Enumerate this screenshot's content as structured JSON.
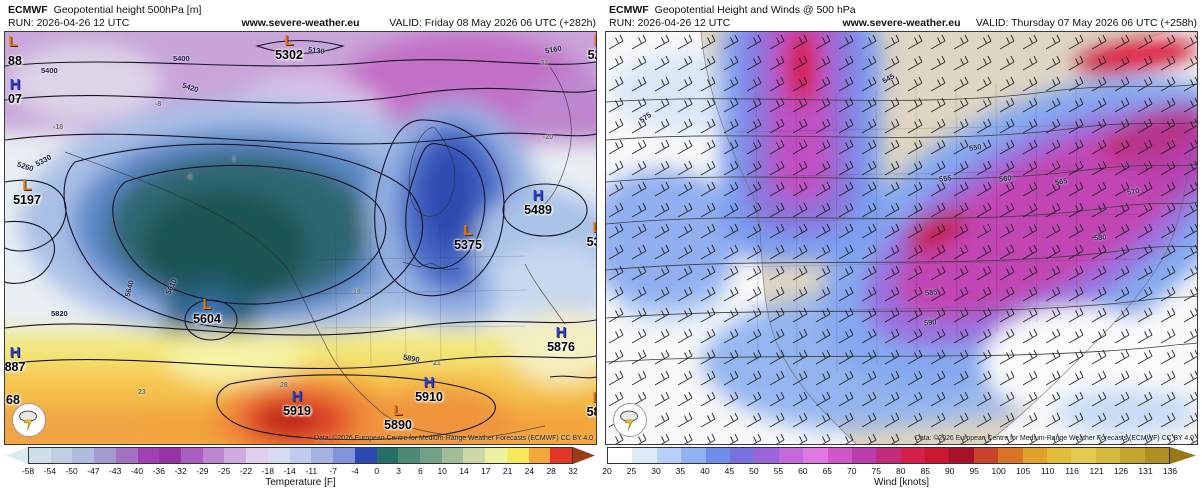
{
  "left_panel": {
    "header": {
      "model": "ECMWF",
      "title": "Geopotential height 500hPa [m]",
      "run": "RUN: 2026-04-26 12 UTC",
      "site": "www.severe-weather.eu",
      "valid": "VALID: Friday 08 May 2026 06 UTC (+282h)"
    },
    "attribution": "Data: ©2026 European Centre for Medium-Range Weather Forecasts (ECMWF) CC BY 4.0",
    "centers": [
      {
        "sym": "L",
        "val": "5302"
      },
      {
        "sym": "L",
        "val": "523"
      },
      {
        "sym": "L",
        "val": ""
      },
      {
        "sym": "L",
        "val": "5197"
      },
      {
        "sym": "H",
        "val": "5489"
      },
      {
        "sym": "L",
        "val": "5375"
      },
      {
        "sym": "L",
        "val": "538"
      },
      {
        "sym": "L",
        "val": "5604"
      },
      {
        "sym": "H",
        "val": "887"
      },
      {
        "sym": "",
        "val": "68"
      },
      {
        "sym": "",
        "val": "88"
      },
      {
        "sym": "H",
        "val": "07"
      },
      {
        "sym": "H",
        "val": "5919"
      },
      {
        "sym": "H",
        "val": "5910"
      },
      {
        "sym": "L",
        "val": "5890"
      },
      {
        "sym": "H",
        "val": "5876"
      },
      {
        "sym": "L",
        "val": "585"
      }
    ],
    "contour_labels": [
      "5400",
      "5400",
      "5420",
      "5330",
      "5260",
      "5130",
      "5160",
      "5610",
      "5640",
      "5820",
      "5890"
    ],
    "temp_labels": [
      "-18",
      "-8",
      "-2",
      "1",
      "-33",
      "-20",
      "19",
      "23",
      "21",
      "28"
    ],
    "colorbar": {
      "label": "Temperature [F]",
      "ticks": [
        "-58",
        "-54",
        "-50",
        "-47",
        "-43",
        "-40",
        "-36",
        "-32",
        "-29",
        "-25",
        "-22",
        "-18",
        "-14",
        "-11",
        "-7",
        "-4",
        "0",
        "3",
        "6",
        "10",
        "14",
        "17",
        "21",
        "24",
        "28",
        "32"
      ],
      "cells": [
        "#cfdfe9",
        "#bed0e3",
        "#aebcdd",
        "#a29cd2",
        "#a372c5",
        "#a33fb5",
        "#9733a7",
        "#a95dc1",
        "#bc85d3",
        "#d0aae1",
        "#e2ccef",
        "#d7dbf2",
        "#c1cbee",
        "#a4b2e6",
        "#8093db",
        "#2c49b2",
        "#256f68",
        "#4a8a76",
        "#73a187",
        "#a0bd97",
        "#ccd8a6",
        "#eef0a2",
        "#f7e75a",
        "#f5a73b",
        "#e03726"
      ],
      "arrow_left": "#dce9ef",
      "arrow_right": "#9e3a1a"
    }
  },
  "right_panel": {
    "header": {
      "model": "ECMWF",
      "title": "Geopotential Height and Winds @ 500 hPa",
      "run": "RUN: 2026-04-26 12 UTC",
      "site": "www.severe-weather.eu",
      "valid": "VALID: Thursday 07 May 2026 06 UTC (+258h)"
    },
    "attribution": "Data: ©2026 European Centre for Medium-Range Weather Forecasts (ECMWF) CC BY 4.0",
    "contour_labels": [
      "545",
      "575",
      "550",
      "555",
      "560",
      "565",
      "570",
      "580",
      "585",
      "590"
    ],
    "colorbar": {
      "label": "Wind [knots]",
      "ticks": [
        "20",
        "25",
        "30",
        "35",
        "40",
        "45",
        "50",
        "55",
        "60",
        "65",
        "70",
        "75",
        "80",
        "85",
        "90",
        "95",
        "100",
        "105",
        "110",
        "116",
        "121",
        "126",
        "131",
        "136"
      ],
      "cells": [
        "#ffffff",
        "#ddeafa",
        "#b6d1f7",
        "#8fb2f3",
        "#6e8eed",
        "#7b72e2",
        "#9b64da",
        "#c468dd",
        "#e078e4",
        "#d156c9",
        "#bd3dae",
        "#c22a7a",
        "#d62048",
        "#cc1732",
        "#a8112a",
        "#c8432a",
        "#da7426",
        "#e2a02c",
        "#e4bc3c",
        "#e2ca50",
        "#d6bb40",
        "#c6a630",
        "#b28e22"
      ],
      "arrow_right": "#9a7a18"
    }
  }
}
